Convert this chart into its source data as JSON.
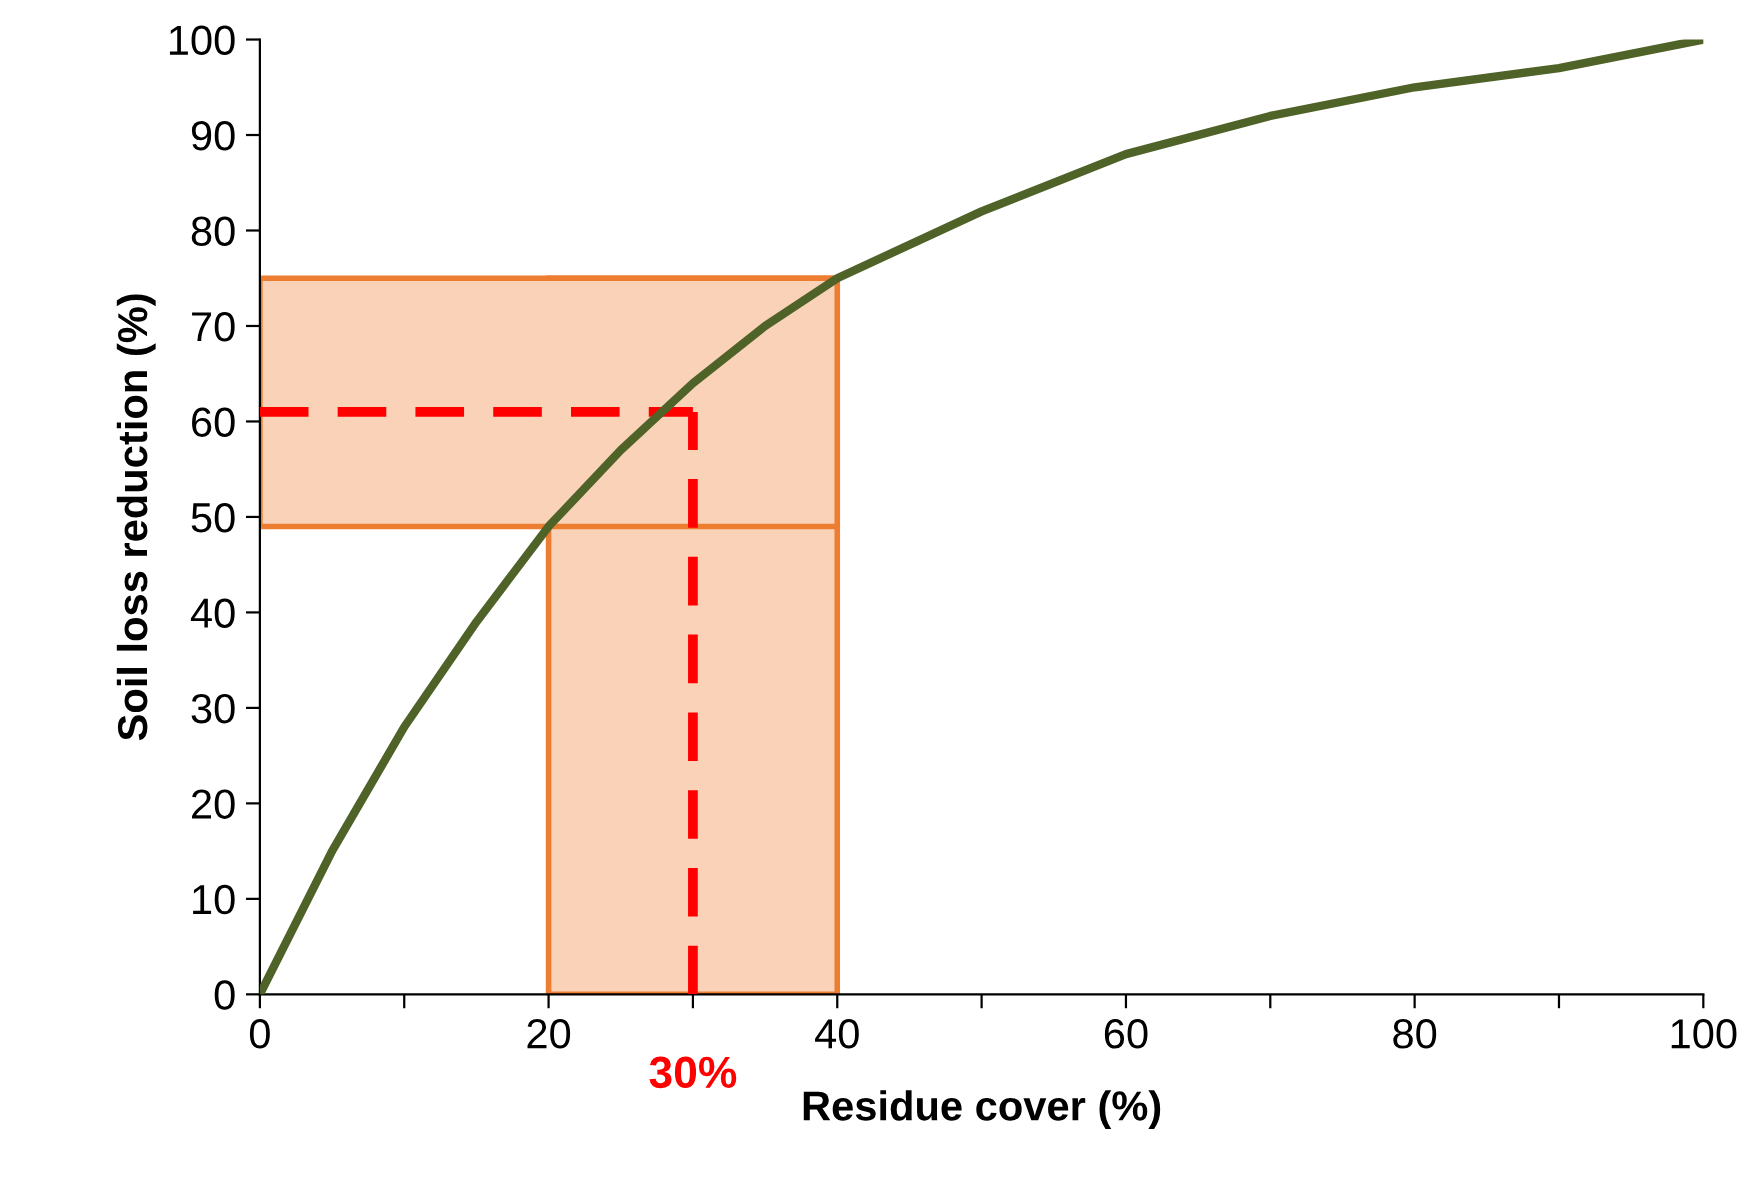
{
  "chart_data": {
    "type": "line",
    "xlabel": "Residue cover (%)",
    "ylabel": "Soil loss reduction (%)",
    "series": [
      {
        "color": "#4f6228",
        "x": [
          0,
          5,
          10,
          15,
          20,
          25,
          30,
          35,
          40,
          50,
          60,
          70,
          80,
          90,
          100
        ],
        "values": [
          0,
          15,
          28,
          39,
          49,
          57,
          64,
          70,
          75,
          82,
          88,
          92,
          95,
          97,
          100
        ]
      }
    ],
    "xlim": [
      0,
      100
    ],
    "ylim": [
      0,
      100
    ],
    "xticks": [
      0,
      {
        "value": 10,
        "label": null
      },
      20,
      {
        "value": 30,
        "label": null
      },
      40,
      {
        "value": 50,
        "label": null
      },
      60,
      {
        "value": 70,
        "label": null
      },
      80,
      {
        "value": 90,
        "label": null
      },
      100
    ],
    "yticks": [
      0,
      10,
      20,
      30,
      40,
      50,
      60,
      70,
      80,
      90,
      100
    ],
    "bands": [
      {
        "axis": "x",
        "from": 20,
        "to": 40,
        "color": "#ed7d31"
      },
      {
        "axis": "y",
        "from": 49,
        "to": 75,
        "color": "#ed7d31"
      }
    ],
    "ref_lines": [
      {
        "axis": "x",
        "value": 30,
        "label": "30%",
        "color": "#ff0000",
        "line_style": "dashed"
      },
      {
        "axis": "y",
        "value": 61,
        "color": "#ff0000",
        "line_style": "dashed"
      }
    ],
    "grid": false,
    "marker": "none",
    "line_style": "solid"
  }
}
